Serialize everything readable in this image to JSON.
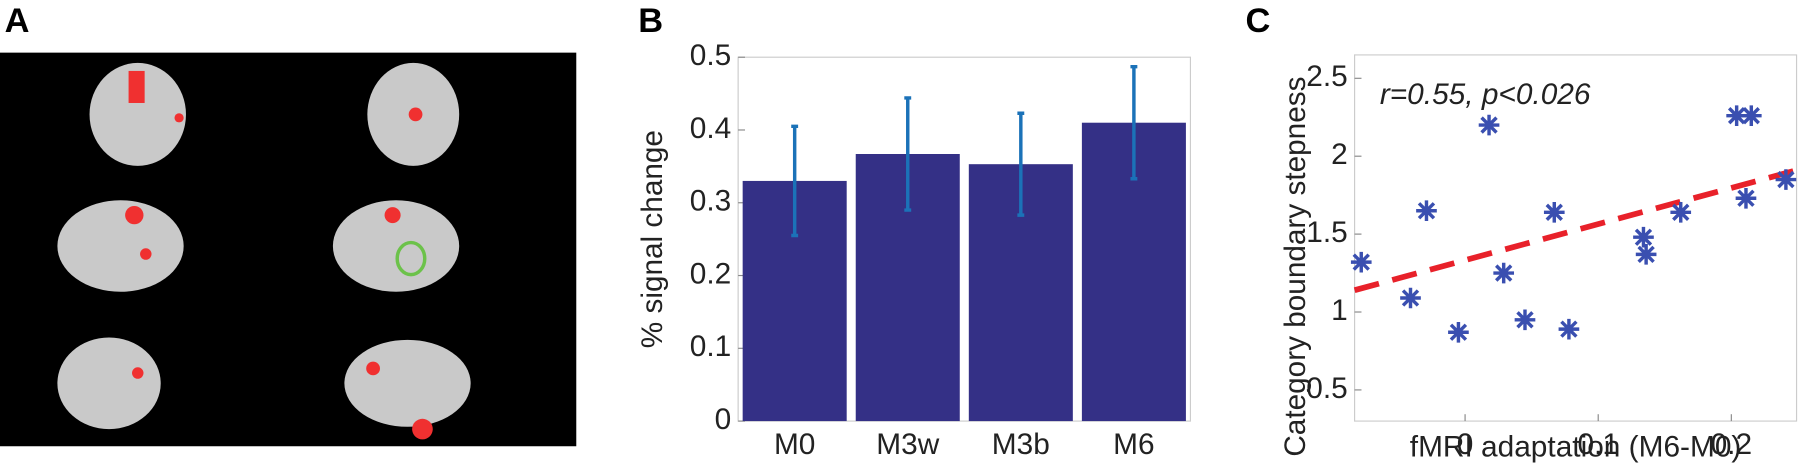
{
  "panel_labels": [
    "A",
    "B",
    "C"
  ],
  "chart_data": [
    {
      "type": "bar",
      "ylabel": "% signal change",
      "categories": [
        "M0",
        "M3w",
        "M3b",
        "M6"
      ],
      "values": [
        0.33,
        0.367,
        0.353,
        0.41
      ],
      "errors": [
        0.075,
        0.077,
        0.07,
        0.077
      ],
      "color": "#343086",
      "error_color": "#1b72b8",
      "ylim": [
        0,
        0.5
      ],
      "yticks": [
        0,
        0.1,
        0.2,
        0.3,
        0.4,
        0.5
      ]
    },
    {
      "type": "scatter",
      "xlabel": "fMRI adaptation (M6-M0)",
      "ylabel": "Category boundary stepness",
      "annotation": "r=0.55, p<0.026",
      "x": [
        -0.078,
        -0.041,
        -0.029,
        -0.005,
        0.018,
        0.029,
        0.045,
        0.067,
        0.078,
        0.134,
        0.136,
        0.162,
        0.204,
        0.215,
        0.211,
        0.241
      ],
      "values": [
        1.32,
        1.09,
        1.65,
        0.87,
        2.2,
        1.25,
        0.95,
        1.64,
        0.89,
        1.48,
        1.37,
        1.64,
        2.26,
        2.26,
        1.73,
        1.85
      ],
      "color": "#3a4fb0",
      "fit": {
        "x": [
          -0.083,
          0.249
        ],
        "y": [
          1.14,
          1.91
        ],
        "color": "#e8212a"
      },
      "xlim": [
        -0.083,
        0.249
      ],
      "ylim": [
        0.3,
        2.65
      ],
      "xticks": [
        0,
        0.1,
        0.2
      ],
      "yticks": [
        0.5,
        1,
        1.5,
        2,
        2.5
      ]
    }
  ]
}
